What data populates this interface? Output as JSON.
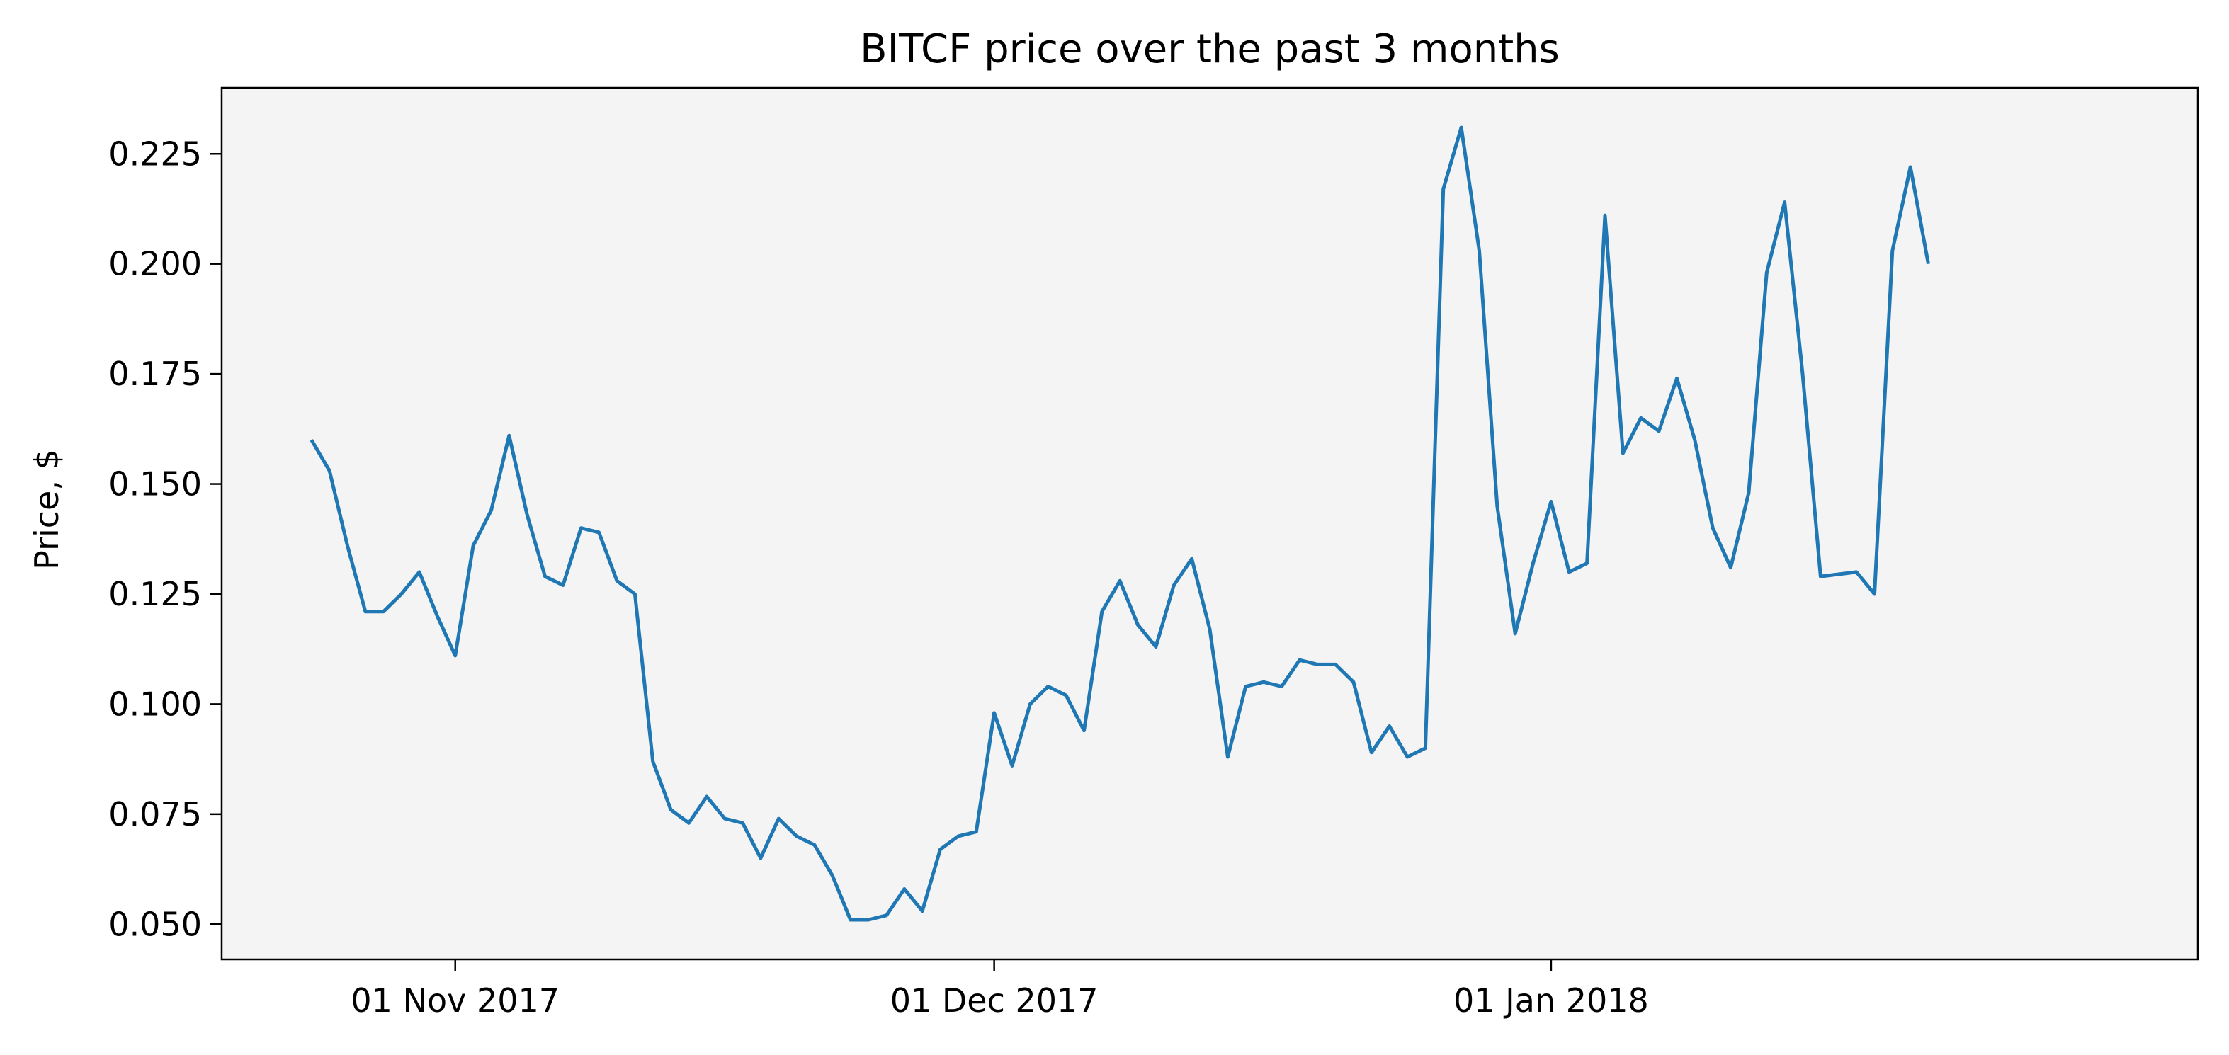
{
  "chart_data": {
    "type": "line",
    "title": "BITCF price over the past 3 months",
    "xlabel": "",
    "ylabel": "Price, $",
    "x_ticks": [
      "01 Nov 2017",
      "01 Dec 2017",
      "01 Jan 2018"
    ],
    "y_ticks": [
      "0.050",
      "0.075",
      "0.100",
      "0.125",
      "0.150",
      "0.175",
      "0.200",
      "0.225"
    ],
    "ylim": [
      0.042,
      0.24
    ],
    "xlim": [
      "2017-10-19",
      "2018-02-06"
    ],
    "grid": false,
    "background": "#f4f4f4",
    "line_color": "#1f77b4",
    "series": [
      {
        "values": [
          [
            "2017-10-24",
            0.16
          ],
          [
            "2017-10-25",
            0.153
          ],
          [
            "2017-10-26",
            0.136
          ],
          [
            "2017-10-27",
            0.121
          ],
          [
            "2017-10-28",
            0.121
          ],
          [
            "2017-10-29",
            0.125
          ],
          [
            "2017-10-30",
            0.13
          ],
          [
            "2017-10-31",
            0.12
          ],
          [
            "2017-11-01",
            0.111
          ],
          [
            "2017-11-02",
            0.136
          ],
          [
            "2017-11-03",
            0.144
          ],
          [
            "2017-11-04",
            0.161
          ],
          [
            "2017-11-05",
            0.143
          ],
          [
            "2017-11-06",
            0.129
          ],
          [
            "2017-11-07",
            0.127
          ],
          [
            "2017-11-08",
            0.14
          ],
          [
            "2017-11-09",
            0.139
          ],
          [
            "2017-11-10",
            0.128
          ],
          [
            "2017-11-11",
            0.125
          ],
          [
            "2017-11-12",
            0.087
          ],
          [
            "2017-11-13",
            0.076
          ],
          [
            "2017-11-14",
            0.073
          ],
          [
            "2017-11-15",
            0.079
          ],
          [
            "2017-11-16",
            0.074
          ],
          [
            "2017-11-17",
            0.073
          ],
          [
            "2017-11-18",
            0.065
          ],
          [
            "2017-11-19",
            0.074
          ],
          [
            "2017-11-20",
            0.07
          ],
          [
            "2017-11-21",
            0.068
          ],
          [
            "2017-11-22",
            0.061
          ],
          [
            "2017-11-23",
            0.051
          ],
          [
            "2017-11-24",
            0.051
          ],
          [
            "2017-11-25",
            0.052
          ],
          [
            "2017-11-26",
            0.058
          ],
          [
            "2017-11-27",
            0.053
          ],
          [
            "2017-11-28",
            0.067
          ],
          [
            "2017-11-29",
            0.07
          ],
          [
            "2017-11-30",
            0.071
          ],
          [
            "2017-12-01",
            0.098
          ],
          [
            "2017-12-02",
            0.086
          ],
          [
            "2017-12-03",
            0.1
          ],
          [
            "2017-12-04",
            0.104
          ],
          [
            "2017-12-05",
            0.102
          ],
          [
            "2017-12-06",
            0.094
          ],
          [
            "2017-12-07",
            0.121
          ],
          [
            "2017-12-08",
            0.128
          ],
          [
            "2017-12-09",
            0.118
          ],
          [
            "2017-12-10",
            0.113
          ],
          [
            "2017-12-11",
            0.127
          ],
          [
            "2017-12-12",
            0.133
          ],
          [
            "2017-12-13",
            0.117
          ],
          [
            "2017-12-14",
            0.088
          ],
          [
            "2017-12-15",
            0.104
          ],
          [
            "2017-12-16",
            0.105
          ],
          [
            "2017-12-17",
            0.104
          ],
          [
            "2017-12-18",
            0.11
          ],
          [
            "2017-12-19",
            0.109
          ],
          [
            "2017-12-20",
            0.109
          ],
          [
            "2017-12-21",
            0.105
          ],
          [
            "2017-12-22",
            0.089
          ],
          [
            "2017-12-23",
            0.095
          ],
          [
            "2017-12-24",
            0.088
          ],
          [
            "2017-12-25",
            0.09
          ],
          [
            "2017-12-26",
            0.217
          ],
          [
            "2017-12-27",
            0.231
          ],
          [
            "2017-12-28",
            0.203
          ],
          [
            "2017-12-29",
            0.145
          ],
          [
            "2017-12-30",
            0.116
          ],
          [
            "2017-12-31",
            0.132
          ],
          [
            "2018-01-01",
            0.146
          ],
          [
            "2018-01-02",
            0.13
          ],
          [
            "2018-01-03",
            0.132
          ],
          [
            "2018-01-04",
            0.211
          ],
          [
            "2018-01-05",
            0.157
          ],
          [
            "2018-01-06",
            0.165
          ],
          [
            "2018-01-07",
            0.162
          ],
          [
            "2018-01-08",
            0.174
          ],
          [
            "2018-01-09",
            0.16
          ],
          [
            "2018-01-10",
            0.14
          ],
          [
            "2018-01-11",
            0.131
          ],
          [
            "2018-01-12",
            0.148
          ],
          [
            "2018-01-13",
            0.198
          ],
          [
            "2018-01-14",
            0.214
          ],
          [
            "2018-01-15",
            0.175
          ],
          [
            "2018-01-16",
            0.129
          ],
          [
            "2018-01-18",
            0.13
          ],
          [
            "2018-01-19",
            0.125
          ],
          [
            "2018-01-20",
            0.203
          ],
          [
            "2018-01-21",
            0.222
          ],
          [
            "2018-01-22",
            0.2
          ]
        ]
      }
    ]
  }
}
